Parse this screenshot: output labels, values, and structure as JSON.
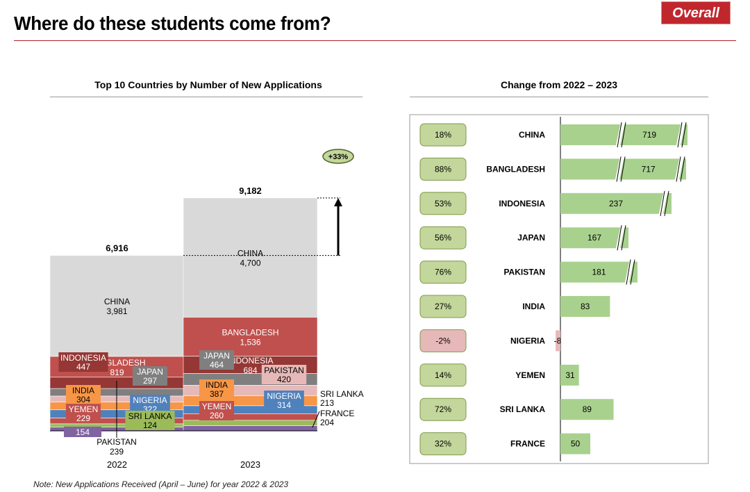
{
  "header": {
    "title": "Where do these students come from?",
    "badge": "Overall"
  },
  "colors": {
    "accent": "#c0272d"
  },
  "note": "Note: New Applications Received (April – June) for year 2022 & 2023",
  "chart_data": [
    {
      "type": "bar",
      "stacked": true,
      "title": "Top 10 Countries by Number of New Applications",
      "categories": [
        "2022",
        "2023"
      ],
      "totals": [
        6916,
        9182
      ],
      "growth_label": "+33%",
      "series": [
        {
          "name": "CHINA",
          "values": [
            3981,
            4700
          ],
          "color": "#d9d9d9",
          "label_color": "#000000"
        },
        {
          "name": "BANGLADESH",
          "values": [
            819,
            1536
          ],
          "color": "#c0504d",
          "label_color": "#ffffff"
        },
        {
          "name": "INDONESIA",
          "values": [
            447,
            684
          ],
          "color": "#953735",
          "label_color": "#ffffff"
        },
        {
          "name": "JAPAN",
          "values": [
            297,
            464
          ],
          "color": "#7f7f7f",
          "label_color": "#ffffff"
        },
        {
          "name": "PAKISTAN",
          "values": [
            239,
            420
          ],
          "color": "#e6b9b8",
          "label_color": "#000000"
        },
        {
          "name": "INDIA",
          "values": [
            304,
            387
          ],
          "color": "#f79646",
          "label_color": "#000000"
        },
        {
          "name": "NIGERIA",
          "values": [
            322,
            314
          ],
          "color": "#4f81bd",
          "label_color": "#ffffff"
        },
        {
          "name": "YEMEN",
          "values": [
            229,
            260
          ],
          "color": "#c0504d",
          "label_color": "#ffffff"
        },
        {
          "name": "SRI LANKA",
          "values": [
            124,
            213
          ],
          "color": "#9bbb59",
          "label_color": "#000000"
        },
        {
          "name": "FRANCE",
          "values": [
            154,
            204
          ],
          "color": "#8064a2",
          "label_color": "#ffffff"
        }
      ]
    },
    {
      "type": "bar",
      "orientation": "horizontal",
      "title": "Change from 2022 – 2023",
      "categories": [
        "CHINA",
        "BANGLADESH",
        "INDONESIA",
        "JAPAN",
        "PAKISTAN",
        "INDIA",
        "NIGERIA",
        "YEMEN",
        "SRI LANKA",
        "FRANCE"
      ],
      "values": [
        719,
        717,
        237,
        167,
        181,
        83,
        -8,
        31,
        89,
        50
      ],
      "percent_change": [
        "18%",
        "88%",
        "53%",
        "56%",
        "76%",
        "27%",
        "-2%",
        "14%",
        "72%",
        "32%"
      ],
      "axis_break": [
        true,
        true,
        true,
        true,
        true,
        false,
        false,
        false,
        false,
        false
      ],
      "bar_color": "#a9d18e",
      "negative_color": "#e6b9b8"
    }
  ]
}
